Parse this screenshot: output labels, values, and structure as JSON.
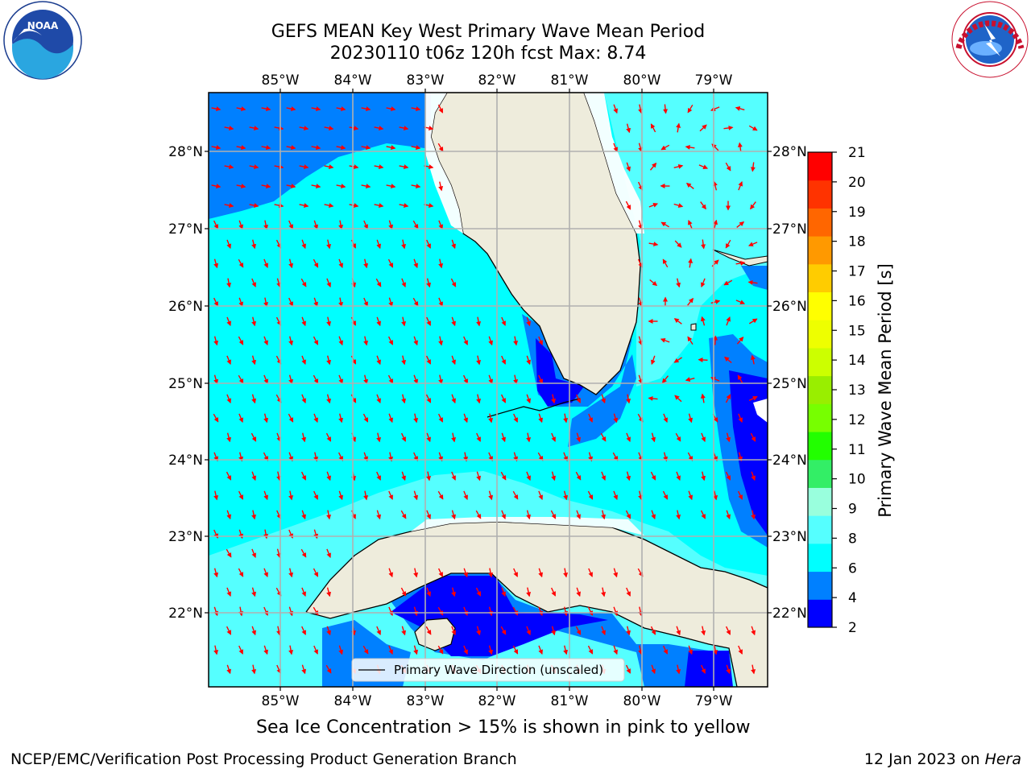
{
  "header": {
    "title_line1": "GEFS MEAN Key West Primary Wave Mean Period",
    "title_line2": "20230110 t06z 120h fcst   Max: 8.74"
  },
  "logos": {
    "noaa_text": "NOAA",
    "noaa_ring_text": "NATIONAL OCEANIC AND ATMOSPHERIC ADMINISTRATION · U.S. DEPARTMENT OF COMMERCE",
    "nws_ring_text": "NATIONAL WEATHER SERVICE"
  },
  "map": {
    "lon_labels": [
      "85°W",
      "84°W",
      "83°W",
      "82°W",
      "81°W",
      "80°W",
      "79°W"
    ],
    "lat_labels": [
      "28°N",
      "27°N",
      "26°N",
      "25°N",
      "24°N",
      "23°N",
      "22°N"
    ],
    "legend_label": "Primary Wave Direction (unscaled)",
    "arrow_color": "#ff0000",
    "land_color": "#eeecdc",
    "fill_colors": {
      "2-4": "#0000ff",
      "4-6": "#0080ff",
      "6-8": "#00ffff",
      "8-9": "#55ffff"
    }
  },
  "colorbar": {
    "label": "Primary Wave Mean Period [s]",
    "ticks": [
      "2",
      "4",
      "6",
      "8",
      "9",
      "10",
      "11",
      "12",
      "13",
      "14",
      "15",
      "16",
      "17",
      "18",
      "19",
      "20",
      "21"
    ],
    "colors": [
      "#0000ff",
      "#0080ff",
      "#00ffff",
      "#55ffff",
      "#99ffdd",
      "#33ee66",
      "#22ff00",
      "#77ff00",
      "#99ee00",
      "#ccff00",
      "#eeff00",
      "#ffff00",
      "#ffcc00",
      "#ff9900",
      "#ff6600",
      "#ff3300",
      "#ff0000"
    ]
  },
  "footer": {
    "ice_note": "Sea Ice Concentration > 15% is shown in pink to yellow",
    "left": "NCEP/EMC/Verification Post Processing Product Generation Branch",
    "right_prefix": "12 Jan 2023 on ",
    "right_italic": "Hera"
  }
}
